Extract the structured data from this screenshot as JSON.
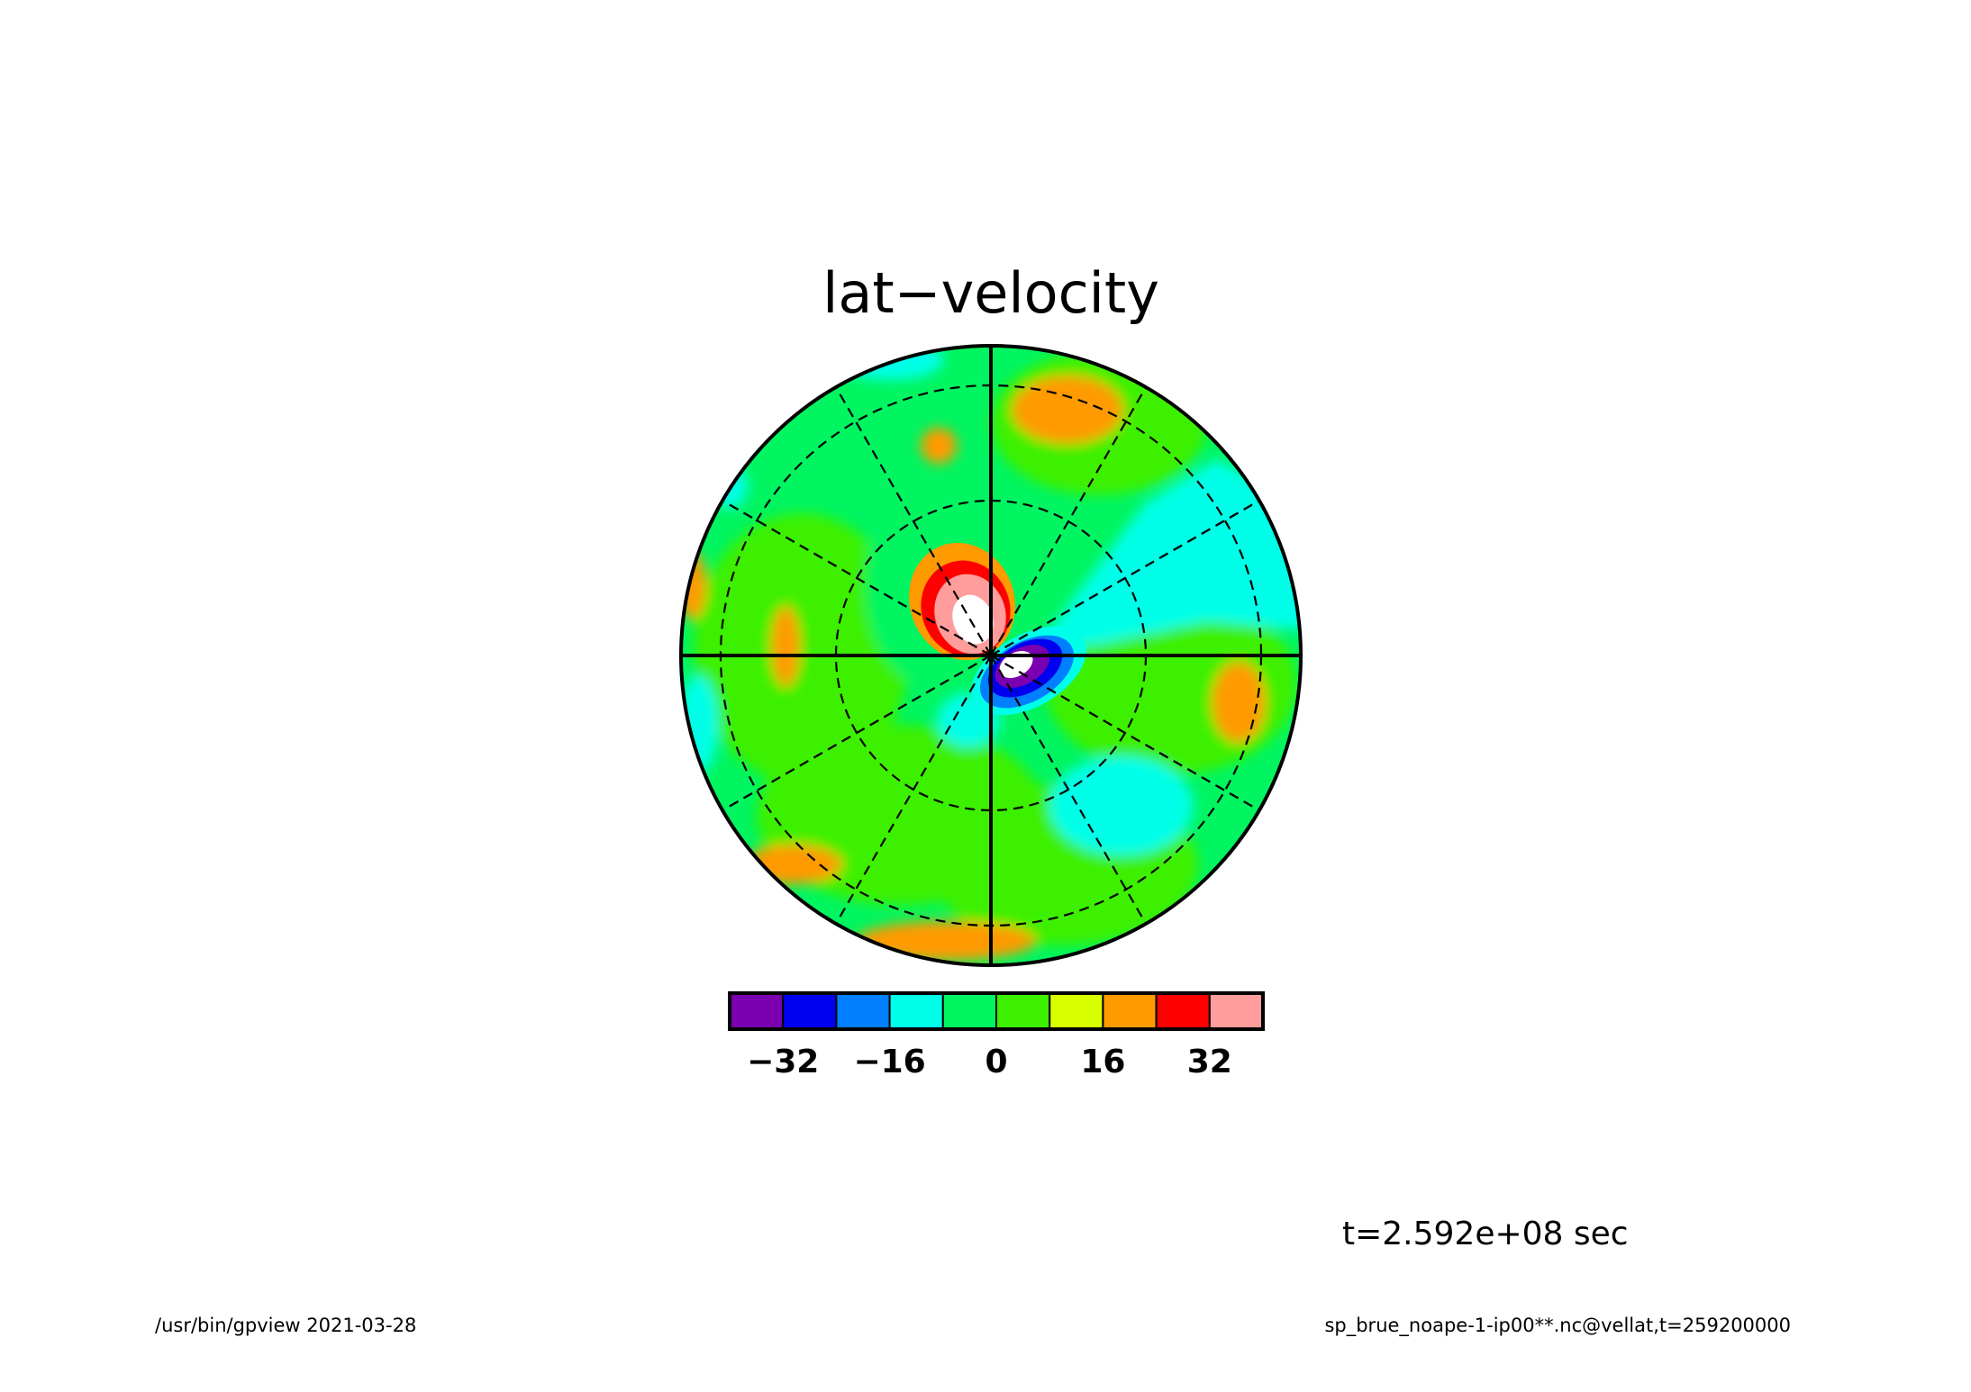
{
  "chart_data": {
    "type": "heatmap",
    "projection": "polar-stereographic",
    "title": "lat−velocity",
    "field": "lat-velocity",
    "levels": [
      -40,
      -32,
      -24,
      -16,
      -8,
      0,
      8,
      16,
      24,
      32,
      40
    ],
    "colorbar_tick_values": [
      -32,
      -16,
      0,
      16,
      32
    ],
    "colorbar_tick_labels": [
      "−32",
      "−16",
      "0",
      "16",
      "32"
    ],
    "colors": [
      "#7a00b0",
      "#0000f0",
      "#0080ff",
      "#00ffe8",
      "#00f560",
      "#3cf000",
      "#d8ff00",
      "#ff9a00",
      "#ff0000",
      "#ff9c9c"
    ],
    "background_level_color": "#00f560",
    "features": [
      {
        "name": "positive-center",
        "value": 40
      },
      {
        "name": "negative-center",
        "value": -40
      },
      {
        "name": "cyan-east-band",
        "value": -12
      },
      {
        "name": "cyan-southeast-lobe",
        "value": -12
      },
      {
        "name": "yellow-north-patch",
        "value": 20
      },
      {
        "name": "yellow-east-patch",
        "value": 20
      },
      {
        "name": "yellow-south-rim",
        "value": 20
      }
    ]
  },
  "annotations": {
    "time_label": "t=2.592e+08 sec",
    "footer_left": "/usr/bin/gpview  2021-03-28",
    "footer_right": "sp_brue_noape-1-ip00**.nc@vellat,t=259200000"
  }
}
